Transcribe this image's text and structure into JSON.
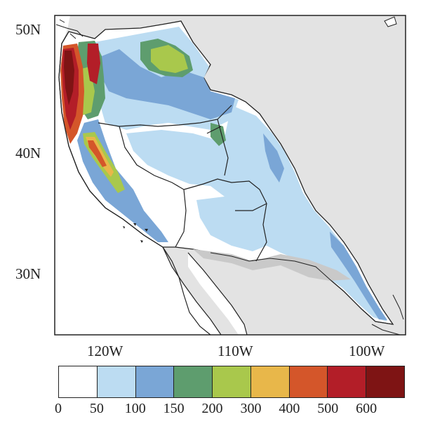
{
  "map": {
    "lat_labels": [
      "50N",
      "40N",
      "30N"
    ],
    "lon_labels": [
      "120W",
      "110W",
      "100W"
    ],
    "colors": {
      "land_outside": "#e3e3e3",
      "ocean": "#ffffff",
      "border": "#222222"
    }
  },
  "colorbar": {
    "ticks": [
      "0",
      "50",
      "100",
      "150",
      "200",
      "300",
      "400",
      "500",
      "600"
    ],
    "colors": [
      "#ffffff",
      "#bcdcf2",
      "#7aa6d6",
      "#5e9d6e",
      "#a9c84c",
      "#e8b74a",
      "#d4562a",
      "#b31e28",
      "#7e1414"
    ]
  }
}
